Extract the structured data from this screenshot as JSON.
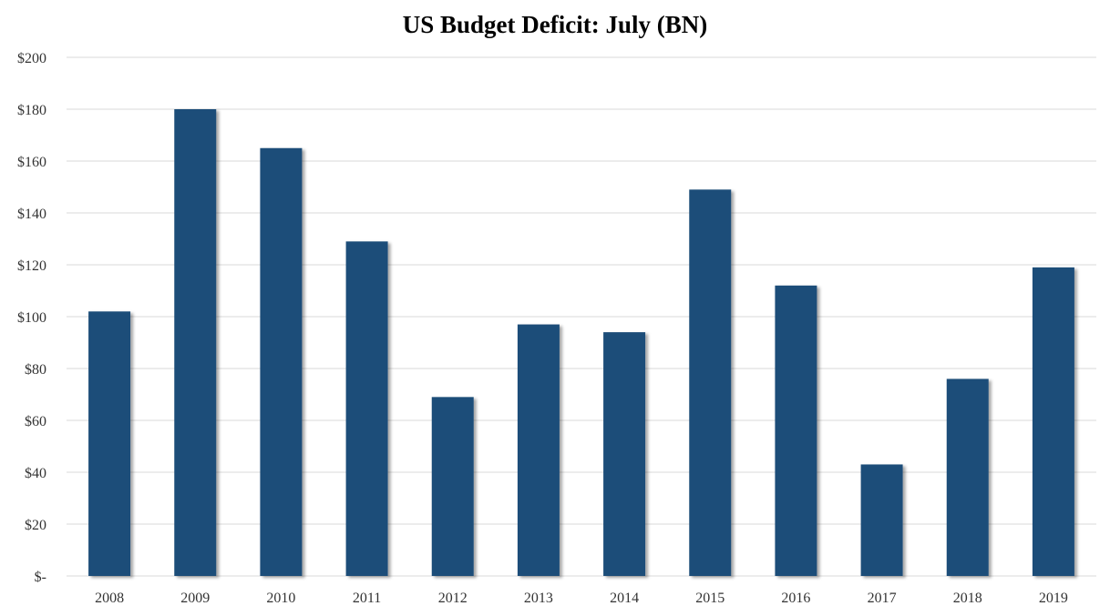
{
  "chart_data": {
    "type": "bar",
    "title": "US Budget Deficit: July  (BN)",
    "xlabel": "",
    "ylabel": "",
    "categories": [
      "2008",
      "2009",
      "2010",
      "2011",
      "2012",
      "2013",
      "2014",
      "2015",
      "2016",
      "2017",
      "2018",
      "2019"
    ],
    "values": [
      102,
      180,
      165,
      129,
      69,
      97,
      94,
      149,
      112,
      43,
      76,
      119
    ],
    "ylim": [
      0,
      200
    ],
    "yticks": [
      0,
      20,
      40,
      60,
      80,
      100,
      120,
      140,
      160,
      180,
      200
    ],
    "ytick_labels": [
      "$-",
      "$20",
      "$40",
      "$60",
      "$80",
      "$100",
      "$120",
      "$140",
      "$160",
      "$180",
      "$200"
    ],
    "grid": true,
    "legend": "none",
    "bar_color": "#1f4e79"
  }
}
